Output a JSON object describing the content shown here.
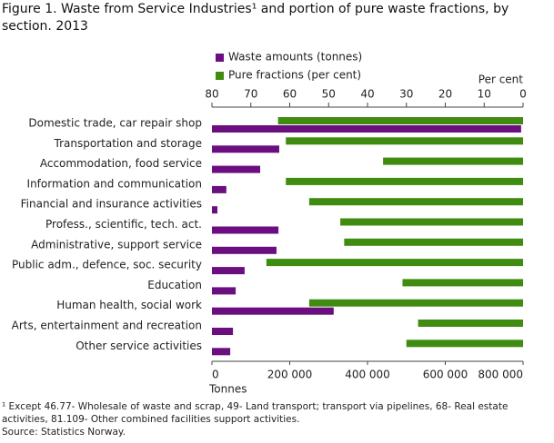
{
  "chart_data": {
    "type": "bar",
    "title": "Figure 1. Waste from Service Industries¹ and portion of pure waste fractions, by section. 2013",
    "categories": [
      "Domestic trade, car repair shop",
      "Transportation and storage",
      "Accommodation, food service",
      "Information and communication",
      "Financial and insurance activities",
      "Profess., scientific, tech. act.",
      "Administrative, support service",
      "Public adm., defence, soc. security",
      "Education",
      "Human health, social work",
      "Arts, entertainment and recreation",
      "Other service activities"
    ],
    "series": [
      {
        "name": "Waste amounts (tonnes)",
        "color": "#6b0f80",
        "axis": "x",
        "values": [
          795000,
          173000,
          124000,
          37000,
          14000,
          171000,
          166000,
          84000,
          61000,
          313000,
          54000,
          47000
        ]
      },
      {
        "name": "Pure fractions (per cent)",
        "color": "#3f8c10",
        "axis": "x2",
        "values": [
          63,
          61,
          36,
          61,
          55,
          47,
          46,
          66,
          31,
          55,
          27,
          30
        ]
      }
    ],
    "xlabel": "Tonnes",
    "x2label": "Per cent",
    "xlim": [
      0,
      800000
    ],
    "xticks": [
      0,
      {
        "value": 200000,
        "label": "200 000"
      },
      {
        "value": 400000,
        "label": "400 000"
      },
      {
        "value": 600000,
        "label": "600 000"
      },
      {
        "value": 800000,
        "label": "800 000"
      }
    ],
    "x2lim": [
      80,
      0
    ],
    "x2ticks": [
      80,
      70,
      60,
      50,
      40,
      30,
      20,
      10,
      0
    ],
    "legend": "top",
    "footnote": "¹ Except 46.77- Wholesale of waste and scrap, 49- Land transport; transport via pipelines, 68- Real estate activities, 81.109- Other combined facilities support activities.",
    "source": "Source: Statistics Norway."
  }
}
